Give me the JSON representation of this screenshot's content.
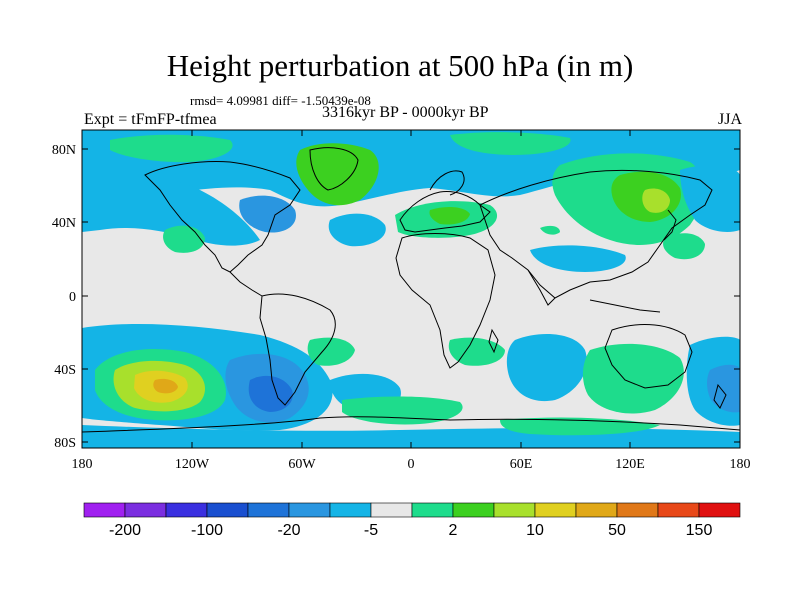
{
  "plot": {
    "title": "Height perturbation at 500 hPa (in m)",
    "stats": "rmsd= 4.09981 diff= -1.50439e-08",
    "subtitle": "3316kyr BP - 0000kyr BP",
    "left_string": "Expt = tFmFP-tfmea",
    "right_string": "JJA"
  },
  "axes": {
    "lat_labels": [
      "80N",
      "40N",
      "0",
      "40S",
      "80S"
    ],
    "lon_labels": [
      "180",
      "120W",
      "60W",
      "0",
      "60E",
      "120E",
      "180"
    ]
  },
  "colorbar": {
    "colors": [
      "#a020f0",
      "#7b2ee0",
      "#3a2fe0",
      "#1a4fd0",
      "#1e73d8",
      "#2a96e0",
      "#14b4e6",
      "#e8e8e8",
      "#1edc8c",
      "#3cd020",
      "#a8e02c",
      "#e0d020",
      "#e0a818",
      "#e07818",
      "#e84818",
      "#e01010"
    ],
    "labels": [
      "-200",
      "-100",
      "-20",
      "-5",
      "2",
      "10",
      "50",
      "150"
    ]
  },
  "regions": [
    {
      "name": "arctic-lightblue",
      "color": "#14b4e6"
    },
    {
      "name": "greenland-green",
      "color": "#3cd020"
    },
    {
      "name": "east-asia-green",
      "color": "#3cd020"
    },
    {
      "name": "south-pacific-high",
      "color": "#e0d020"
    },
    {
      "name": "south-atlantic-low",
      "color": "#1e73d8"
    }
  ]
}
